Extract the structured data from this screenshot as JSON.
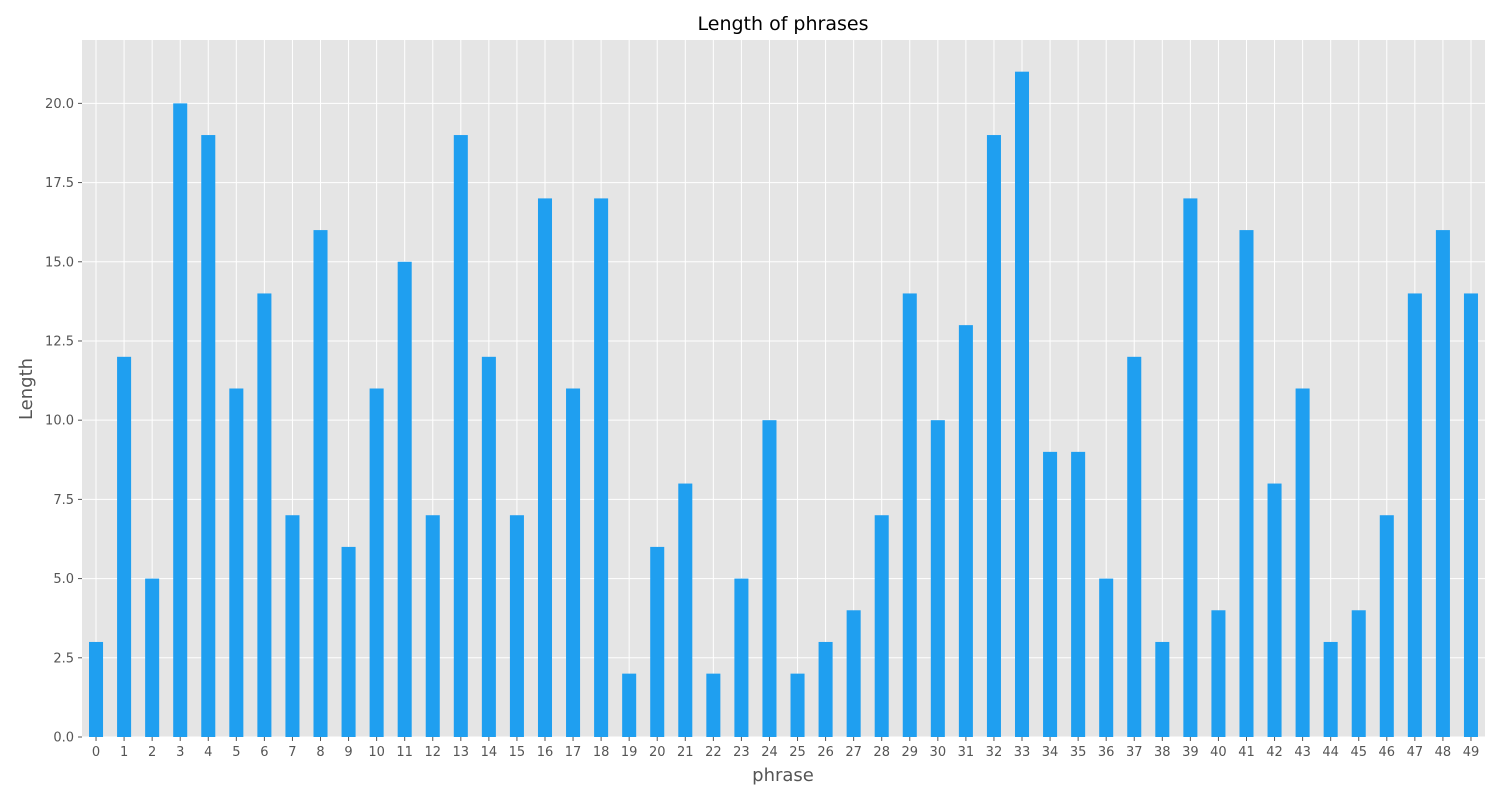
{
  "chart_data": {
    "type": "bar",
    "title": "Length of phrases",
    "xlabel": "phrase",
    "ylabel": "Length",
    "categories": [
      "0",
      "1",
      "2",
      "3",
      "4",
      "5",
      "6",
      "7",
      "8",
      "9",
      "10",
      "11",
      "12",
      "13",
      "14",
      "15",
      "16",
      "17",
      "18",
      "19",
      "20",
      "21",
      "22",
      "23",
      "24",
      "25",
      "26",
      "27",
      "28",
      "29",
      "30",
      "31",
      "32",
      "33",
      "34",
      "35",
      "36",
      "37",
      "38",
      "39",
      "40",
      "41",
      "42",
      "43",
      "44",
      "45",
      "46",
      "47",
      "48",
      "49"
    ],
    "values": [
      3,
      12,
      5,
      20,
      19,
      11,
      14,
      7,
      16,
      6,
      11,
      15,
      7,
      19,
      12,
      7,
      17,
      11,
      17,
      2,
      6,
      8,
      2,
      5,
      10,
      2,
      3,
      4,
      7,
      14,
      10,
      13,
      19,
      21,
      9,
      9,
      5,
      12,
      3,
      17,
      4,
      16,
      8,
      11,
      3,
      4,
      7,
      14,
      16,
      14
    ],
    "ylim": [
      0,
      22
    ],
    "yticks": [
      "0.0",
      "2.5",
      "5.0",
      "7.5",
      "10.0",
      "12.5",
      "15.0",
      "17.5",
      "20.0"
    ],
    "grid": true,
    "legend": "none",
    "colors": {
      "bar": "#1f9ff0",
      "plot_background": "#e5e5e5",
      "grid": "#ffffff"
    }
  }
}
